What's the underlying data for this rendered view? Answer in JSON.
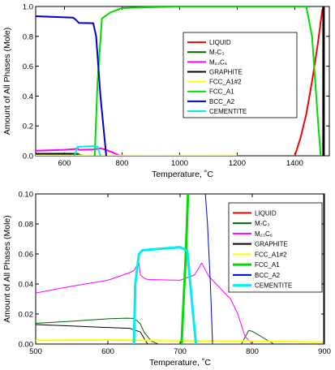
{
  "chart_data": [
    {
      "type": "line",
      "xlabel": "Temperature, ˚C",
      "ylabel": "Amount of All Phases (Mole)",
      "xlim": [
        500,
        1520
      ],
      "ylim": [
        0,
        1.0
      ],
      "xticks": [
        "600",
        "800",
        "1000",
        "1200",
        "1400"
      ],
      "yticks": [
        "0.0",
        "0.2",
        "0.4",
        "0.6",
        "0.8",
        "1.0"
      ],
      "legend_position": "center-right",
      "series": [
        {
          "name": "LIQUID",
          "color": "#ff0000",
          "width": 2,
          "points": [
            [
              1400,
              0
            ],
            [
              1420,
              0.12
            ],
            [
              1440,
              0.28
            ],
            [
              1460,
              0.5
            ],
            [
              1480,
              0.75
            ],
            [
              1495,
              0.97
            ],
            [
              1500,
              1.0
            ]
          ]
        },
        {
          "name": "M₇C₃",
          "sub": [
            "7",
            "3"
          ],
          "color": "#006400",
          "width": 2,
          "points": [
            [
              500,
              0.013
            ],
            [
              600,
              0.014
            ],
            [
              640,
              0.014
            ],
            [
              648,
              0.012
            ],
            [
              655,
              0.005
            ],
            [
              670,
              0.001
            ],
            [
              700,
              0
            ]
          ]
        },
        {
          "name": "M₂₃C₆",
          "sub": [
            "23",
            "6"
          ],
          "color": "#ff00ff",
          "width": 2,
          "points": [
            [
              500,
              0.034
            ],
            [
              600,
              0.04
            ],
            [
              635,
              0.045
            ],
            [
              645,
              0.05
            ],
            [
              650,
              0.04
            ],
            [
              700,
              0.042
            ],
            [
              725,
              0.05
            ],
            [
              745,
              0.04
            ],
            [
              770,
              0.02
            ],
            [
              790,
              0.003
            ],
            [
              800,
              0
            ]
          ]
        },
        {
          "name": "GRAPHITE",
          "color": "#000000",
          "width": 2,
          "points": [
            [
              500,
              0.013
            ],
            [
              600,
              0.012
            ],
            [
              640,
              0.011
            ],
            [
              650,
              0
            ]
          ]
        },
        {
          "name": "FCC_A1#2",
          "color": "#ffff00",
          "width": 2,
          "points": [
            [
              500,
              0.002
            ],
            [
              700,
              0.002
            ],
            [
              900,
              0.001
            ],
            [
              1200,
              0.002
            ]
          ]
        },
        {
          "name": "FCC_A1",
          "color": "#00dd00",
          "width": 2,
          "points": [
            [
              705,
              0
            ],
            [
              715,
              0.5
            ],
            [
              730,
              0.92
            ],
            [
              760,
              0.96
            ],
            [
              800,
              0.99
            ],
            [
              1000,
              1.0
            ],
            [
              1440,
              1.0
            ],
            [
              1460,
              0.8
            ],
            [
              1480,
              0.25
            ],
            [
              1490,
              0
            ]
          ]
        },
        {
          "name": "BCC_A2",
          "color": "#0000cc",
          "width": 2,
          "points": [
            [
              500,
              0.935
            ],
            [
              630,
              0.925
            ],
            [
              640,
              0.91
            ],
            [
              650,
              0.89
            ],
            [
              700,
              0.888
            ],
            [
              710,
              0.8
            ],
            [
              725,
              0.4
            ],
            [
              740,
              0.1
            ],
            [
              745,
              0
            ]
          ]
        },
        {
          "name": "CEMENTITE",
          "color": "#00eeee",
          "width": 2,
          "points": [
            [
              635,
              0
            ],
            [
              645,
              0.06
            ],
            [
              700,
              0.065
            ],
            [
              715,
              0.06
            ],
            [
              725,
              0
            ]
          ]
        },
        {
          "name": "",
          "color": "#000000",
          "width": 3,
          "points": [
            [
              1500,
              0
            ],
            [
              1500,
              1.0
            ]
          ]
        }
      ]
    },
    {
      "type": "line",
      "xlabel": "Temperature, ˚C",
      "ylabel": "Amount of All Phases (Mole)",
      "xlim": [
        500,
        900
      ],
      "ylim": [
        0,
        0.1
      ],
      "xticks": [
        "500",
        "600",
        "700",
        "800",
        "900"
      ],
      "yticks": [
        "0.00",
        "0.02",
        "0.04",
        "0.06",
        "0.08",
        "0.10"
      ],
      "legend_position": "top-right",
      "series": [
        {
          "name": "LIQUID",
          "color": "#ff0000",
          "width": 1,
          "points": []
        },
        {
          "name": "M₇C₃",
          "sub": [
            "7",
            "3"
          ],
          "color": "#006400",
          "width": 1,
          "points": [
            [
              500,
              0.0138
            ],
            [
              550,
              0.0152
            ],
            [
              600,
              0.0168
            ],
            [
              625,
              0.0172
            ],
            [
              635,
              0.0171
            ],
            [
              636,
              0.0162
            ],
            [
              640,
              0.0158
            ],
            [
              645,
              0.0135
            ],
            [
              650,
              0.008
            ],
            [
              660,
              0.002
            ],
            [
              670,
              0
            ],
            [
              785,
              0
            ],
            [
              795,
              0.009
            ],
            [
              800,
              0.0085
            ],
            [
              830,
              0
            ]
          ]
        },
        {
          "name": "M₂₃C₆",
          "sub": [
            "23",
            "6"
          ],
          "color": "#ff00ff",
          "width": 1,
          "points": [
            [
              500,
              0.034
            ],
            [
              550,
              0.0385
            ],
            [
              600,
              0.0425
            ],
            [
              630,
              0.0475
            ],
            [
              636,
              0.049
            ],
            [
              640,
              0.052
            ],
            [
              643,
              0.054
            ],
            [
              645,
              0.046
            ],
            [
              650,
              0.044
            ],
            [
              655,
              0.043
            ],
            [
              700,
              0.0425
            ],
            [
              720,
              0.046
            ],
            [
              730,
              0.054
            ],
            [
              740,
              0.045
            ],
            [
              770,
              0.03
            ],
            [
              780,
              0.02
            ],
            [
              790,
              0.005
            ],
            [
              800,
              0
            ]
          ]
        },
        {
          "name": "GRAPHITE",
          "color": "#000000",
          "width": 1,
          "points": [
            [
              500,
              0.013
            ],
            [
              550,
              0.012
            ],
            [
              600,
              0.011
            ],
            [
              630,
              0.0105
            ],
            [
              645,
              0.008
            ],
            [
              655,
              0
            ]
          ]
        },
        {
          "name": "FCC_A1#2",
          "color": "#ffff00",
          "width": 2,
          "points": [
            [
              500,
              0.0025
            ],
            [
              600,
              0.0028
            ],
            [
              700,
              0.0022
            ],
            [
              800,
              0.002
            ],
            [
              900,
              0.0012
            ]
          ]
        },
        {
          "name": "FCC_A1",
          "color": "#00dd00",
          "width": 3,
          "points": [
            [
              702,
              0
            ],
            [
              708,
              0.06
            ],
            [
              711,
              0.1
            ]
          ]
        },
        {
          "name": "BCC_A2",
          "color": "#0000cc",
          "width": 1,
          "points": [
            [
              735,
              0.1
            ],
            [
              738,
              0.08
            ],
            [
              742,
              0.04
            ],
            [
              745,
              0
            ]
          ]
        },
        {
          "name": "CEMENTITE",
          "color": "#00eeee",
          "width": 3,
          "points": [
            [
              636,
              0
            ],
            [
              638,
              0.04
            ],
            [
              643,
              0.06
            ],
            [
              648,
              0.0625
            ],
            [
              700,
              0.0645
            ],
            [
              710,
              0.062
            ],
            [
              718,
              0.02
            ],
            [
              722,
              0
            ]
          ]
        },
        {
          "name": "",
          "color": "#000000",
          "width": 3,
          "points": [
            [
              900,
              0
            ],
            [
              900,
              0.1
            ]
          ]
        }
      ]
    }
  ]
}
